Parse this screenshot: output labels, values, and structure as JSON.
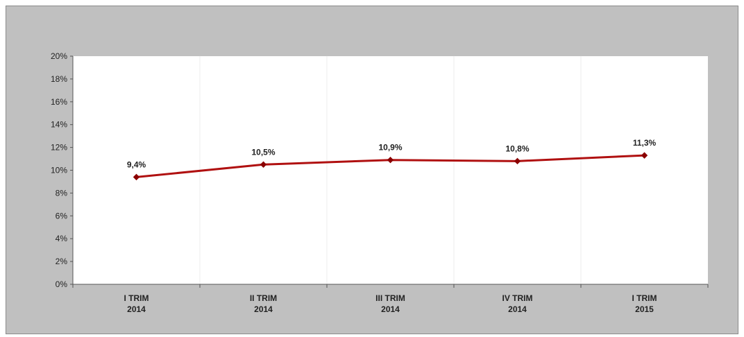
{
  "chart_data": {
    "type": "line",
    "categories": [
      [
        "I TRIM",
        "2014"
      ],
      [
        "II TRIM",
        "2014"
      ],
      [
        "III TRIM",
        "2014"
      ],
      [
        "IV TRIM",
        "2014"
      ],
      [
        "I TRIM",
        "2015"
      ]
    ],
    "series": [
      {
        "values": [
          9.4,
          10.5,
          10.9,
          10.8,
          11.3
        ],
        "labels": [
          "9,4%",
          "10,5%",
          "10,9%",
          "10,8%",
          "11,3%"
        ],
        "color": "#b01010"
      }
    ],
    "y_ticks": [
      "0%",
      "2%",
      "4%",
      "6%",
      "8%",
      "10%",
      "12%",
      "14%",
      "16%",
      "18%",
      "20%"
    ],
    "ylim": [
      0,
      20
    ],
    "y_step": 2,
    "grid": "vertical",
    "legend": "none",
    "colors": {
      "chart_background": "#c0c0c0",
      "plot_background": "#ffffff",
      "line": "#b01010",
      "marker": "#8b0000"
    }
  }
}
